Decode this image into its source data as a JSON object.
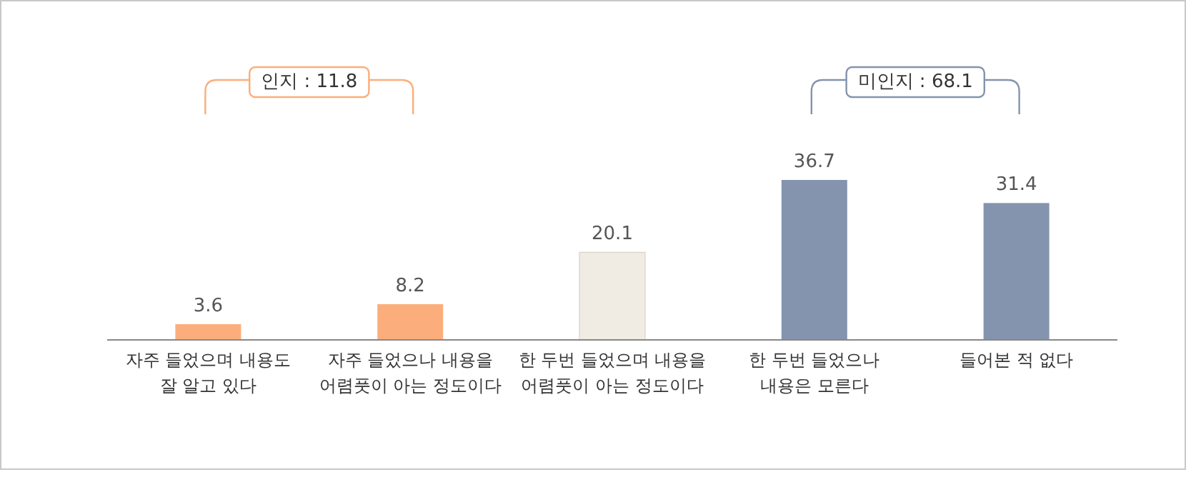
{
  "chart_data": {
    "type": "bar",
    "categories": [
      "자주 들었으며 내용도\n잘 알고 있다",
      "자주 들었으나 내용을\n어렴풋이 아는 정도이다",
      "한 두번 들었으며 내용을\n어렴풋이 아는 정도이다",
      "한 두번 들었으나\n내용은 모른다",
      "들어본 적 없다"
    ],
    "values": [
      3.6,
      8.2,
      20.1,
      36.7,
      31.4
    ],
    "colors": [
      "#fbae7b",
      "#fbae7b",
      "#f0ebe3",
      "#8494ae",
      "#8494ae"
    ],
    "data_labels": true,
    "annotations": [
      "인지 : 11.8",
      "미인지 : 68.1"
    ]
  }
}
